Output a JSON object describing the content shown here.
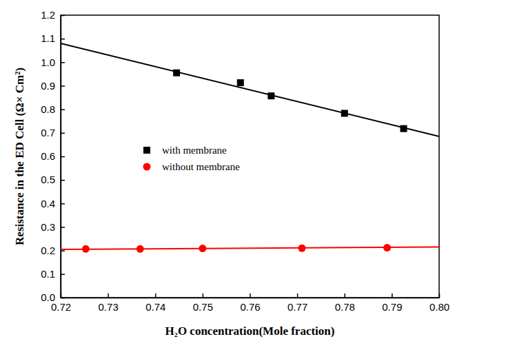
{
  "chart_data": {
    "type": "scatter",
    "x_label": "H₂O concentration(Mole fraction)",
    "y_label": "Resistance in the ED Cell (Ω× Cm²)",
    "xlim": [
      0.72,
      0.8
    ],
    "xticks": [
      0.72,
      0.73,
      0.74,
      0.75,
      0.76,
      0.77,
      0.78,
      0.79,
      {
        "value": 0.8,
        "label": "0.80"
      }
    ],
    "ylim": [
      0,
      1.2
    ],
    "yticks": [
      {
        "value": 0,
        "label": "0.0"
      },
      0.1,
      0.2,
      0.3,
      0.4,
      0.5,
      0.6,
      0.7,
      0.8,
      0.9,
      {
        "value": 1,
        "label": "1.0"
      },
      1.1,
      1.2
    ],
    "series": [
      {
        "name": "with membrane",
        "color": "#000000",
        "marker": "square",
        "x": [
          0.7445,
          0.758,
          0.7645,
          0.78,
          0.7925
        ],
        "values": [
          0.955,
          0.913,
          0.857,
          0.783,
          0.718
        ],
        "fit": {
          "x": [
            0.72,
            0.8
          ],
          "values": [
            1.08,
            0.685
          ]
        }
      },
      {
        "name": "without membrane",
        "color": "#ff0000",
        "marker": "circle",
        "x": [
          0.7253,
          0.7368,
          0.75,
          0.771,
          0.789
        ],
        "values": [
          0.207,
          0.207,
          0.209,
          0.21,
          0.212
        ],
        "fit": {
          "x": [
            0.72,
            0.8
          ],
          "values": [
            0.205,
            0.215
          ]
        }
      }
    ]
  }
}
